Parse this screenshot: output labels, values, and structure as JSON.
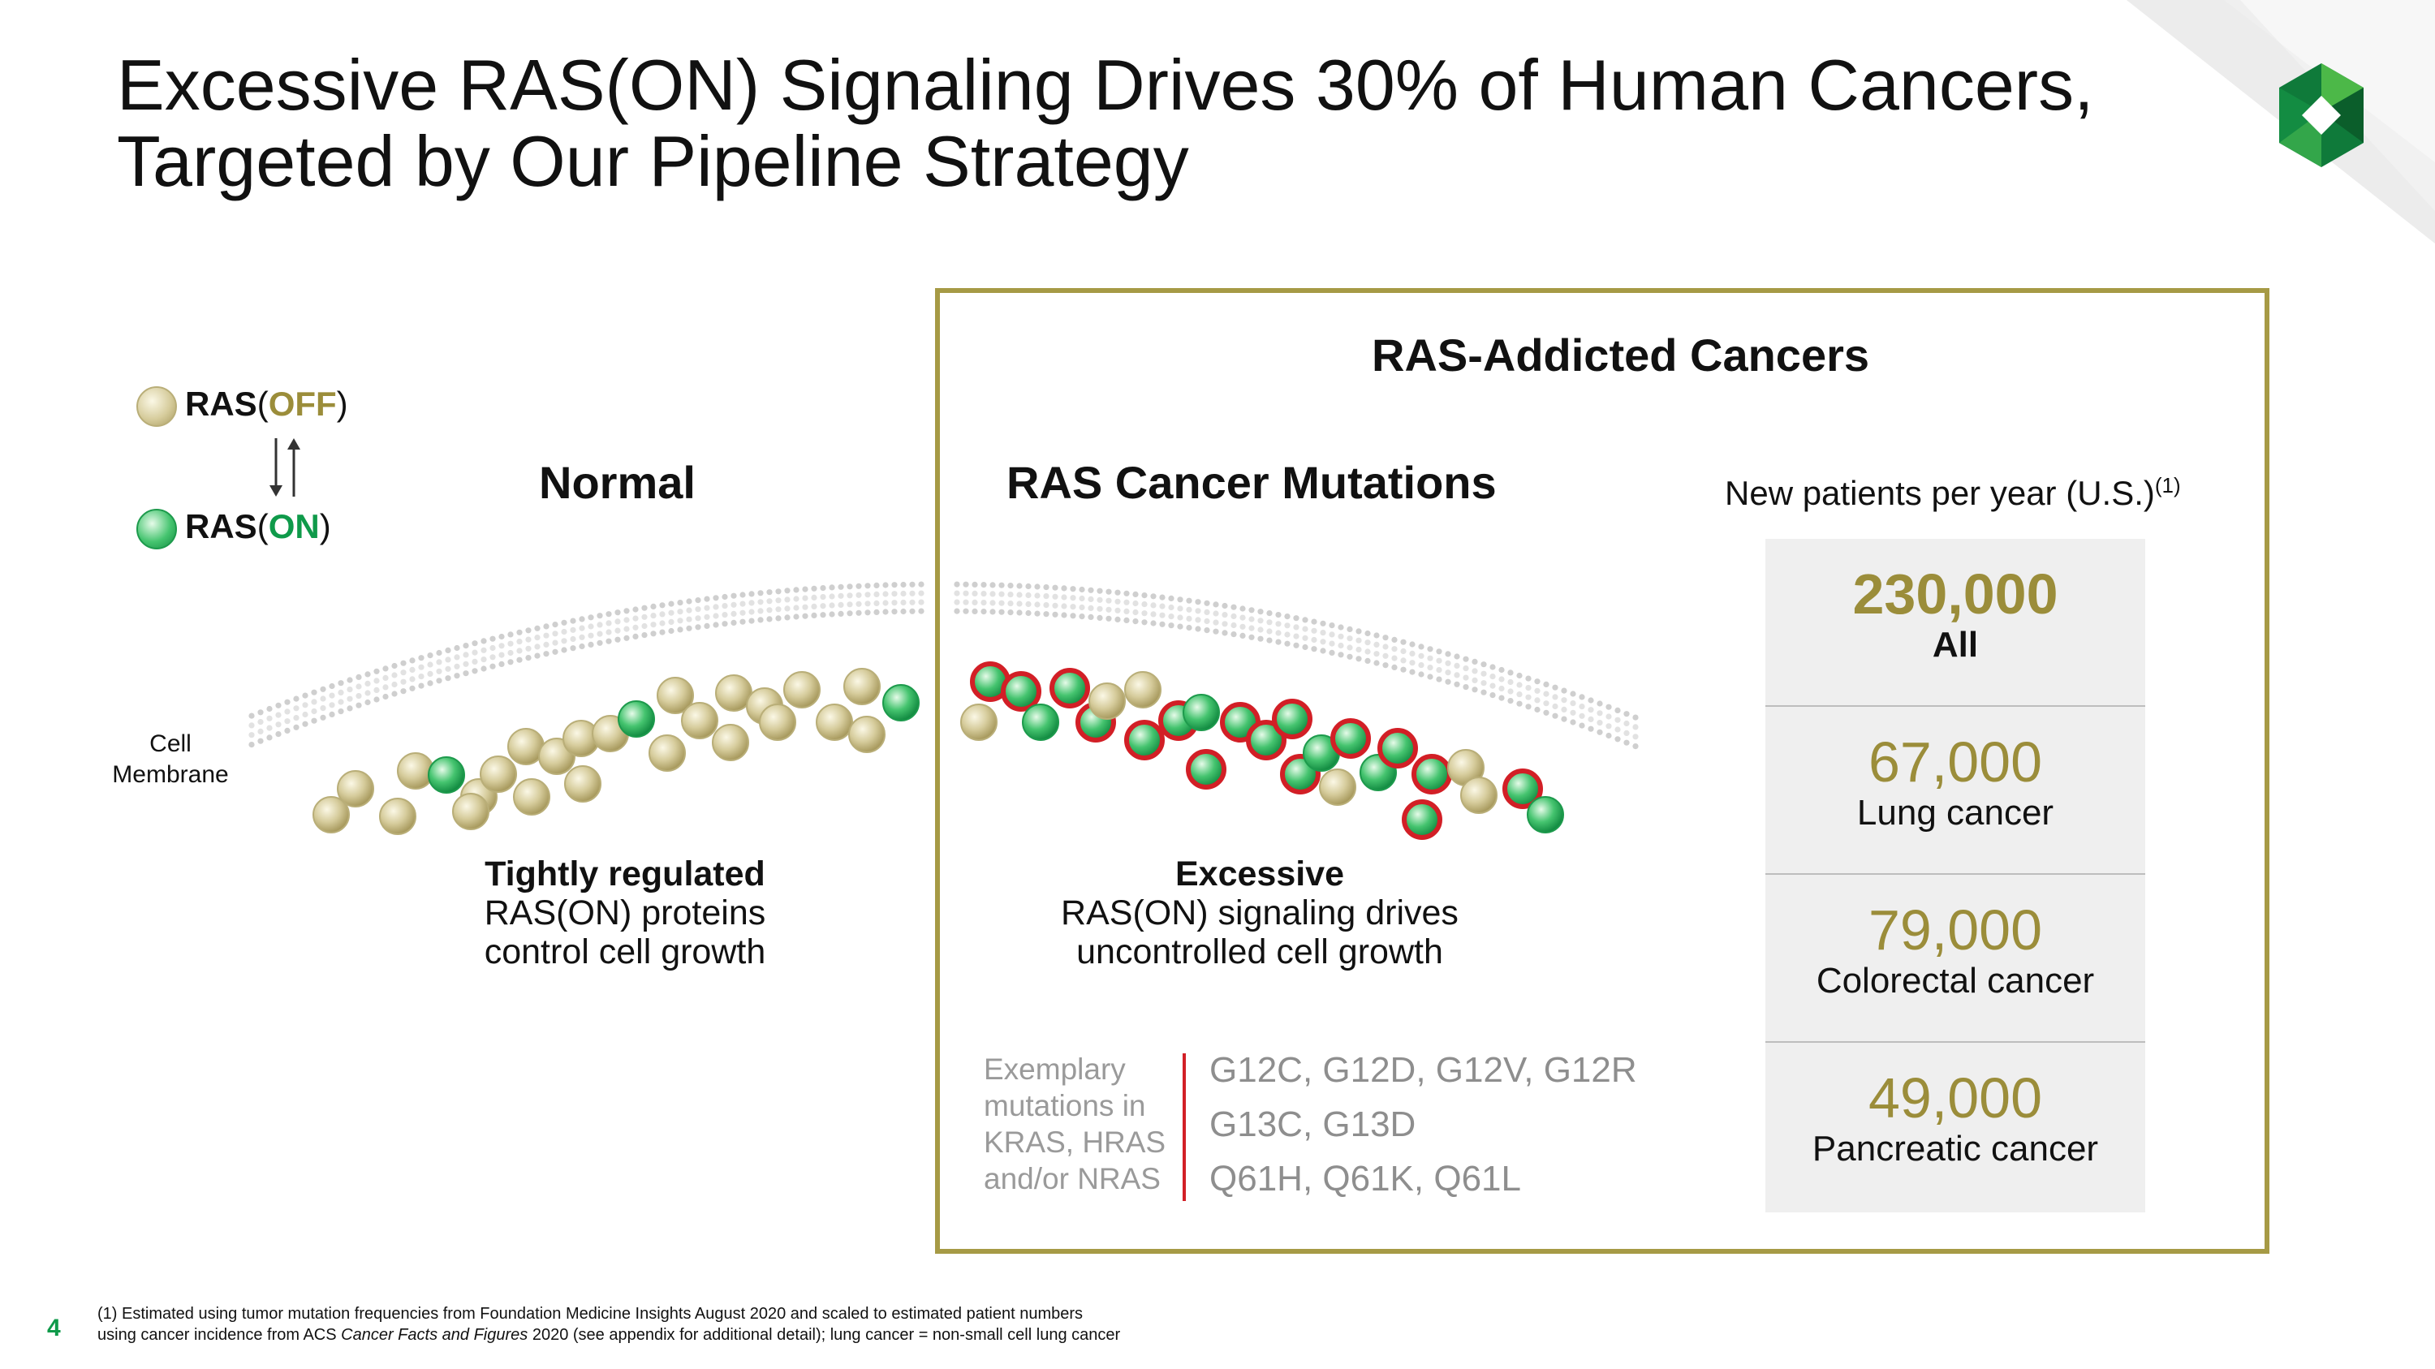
{
  "title": {
    "line1": "Excessive RAS(ON) Signaling Drives 30% of Human Cancers,",
    "line2": "Targeted by Our Pipeline Strategy"
  },
  "legend": {
    "off_prefix": "RAS",
    "off_open": "(",
    "off_state": "OFF",
    "off_close": ")",
    "on_prefix": "RAS",
    "on_open": "(",
    "on_state": "ON",
    "on_close": ")"
  },
  "membrane_label_line1": "Cell",
  "membrane_label_line2": "Membrane",
  "normal": {
    "heading": "Normal",
    "caption_bold": "Tightly regulated",
    "caption_line1": "RAS(ON) proteins",
    "caption_line2": "control cell growth"
  },
  "cancer": {
    "box_title": "RAS-Addicted Cancers",
    "heading": "RAS Cancer Mutations",
    "caption_bold": "Excessive",
    "caption_line1": "RAS(ON) signaling drives",
    "caption_line2": "uncontrolled cell growth"
  },
  "new_patients": {
    "label": "New patients per year (U.S.)",
    "footnote_ref": "(1)"
  },
  "stats": [
    {
      "value": "230,000",
      "label": "All",
      "emphasis": true
    },
    {
      "value": "67,000",
      "label": "Lung cancer",
      "emphasis": false
    },
    {
      "value": "79,000",
      "label": "Colorectal cancer",
      "emphasis": false
    },
    {
      "value": "49,000",
      "label": "Pancreatic cancer",
      "emphasis": false
    }
  ],
  "mutations": {
    "label_lines": [
      "Exemplary",
      "mutations in",
      "KRAS, HRAS",
      "and/or NRAS"
    ],
    "lines": [
      "G12C, G12D, G12V, G12R",
      "G13C, G13D",
      "Q61H, Q61K, Q61L"
    ]
  },
  "footnote": {
    "line1": "(1) Estimated using tumor mutation frequencies from Foundation Medicine Insights August 2020 and scaled to estimated patient numbers",
    "line2_pre": "using cancer incidence from ACS ",
    "line2_italic": "Cancer Facts and Figures",
    "line2_post": " 2020 (see appendix for additional detail); lung cancer = non-small cell lung cancer"
  },
  "page_number": "4",
  "colors": {
    "olive": "#9b8d3a",
    "box_border": "#a69a45",
    "green": "#0f9a4a",
    "mutation_red": "#d21f26",
    "ras_off_ball": "#d6cc9c",
    "ras_on_ball": "#45c46f"
  },
  "icons": [
    "arrow-down-icon",
    "arrow-up-icon",
    "company-logo-icon"
  ]
}
